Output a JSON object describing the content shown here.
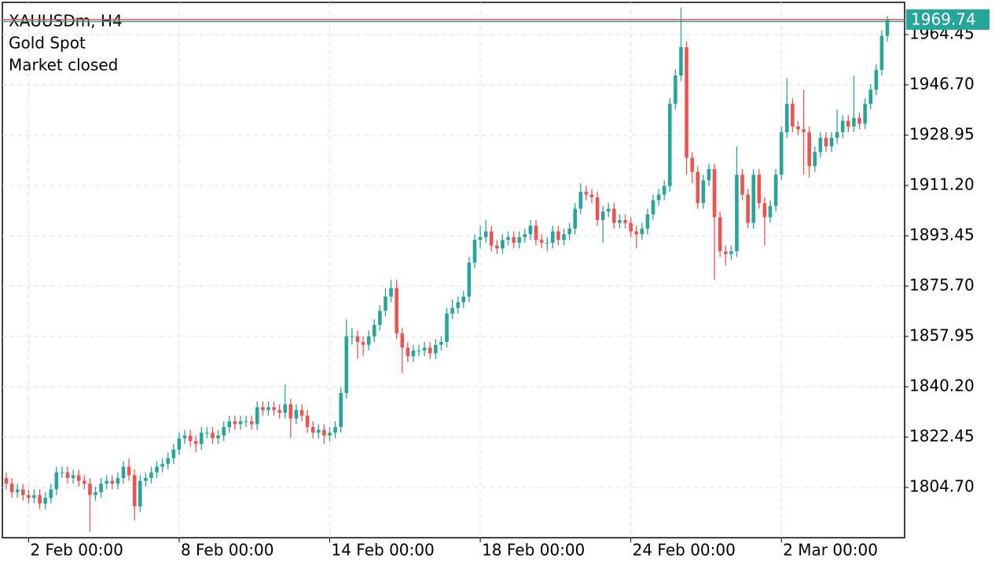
{
  "chart_data": {
    "type": "candlestick",
    "title": "XAUUSDm, H4",
    "subtitle": "Gold Spot",
    "annotation": "Market closed",
    "up_color": "#26a69a",
    "down_color": "#ef5350",
    "grid": true,
    "last_price": 1969.74,
    "ylim": [
      1786.95,
      1975.8
    ],
    "yticks": [
      {
        "value": 1804.7,
        "label": "1804.70"
      },
      {
        "value": 1822.45,
        "label": "1822.45"
      },
      {
        "value": 1840.2,
        "label": "1840.20"
      },
      {
        "value": 1857.95,
        "label": "1857.95"
      },
      {
        "value": 1875.7,
        "label": "1875.70"
      },
      {
        "value": 1893.45,
        "label": "1893.45"
      },
      {
        "value": 1911.2,
        "label": "1911.20"
      },
      {
        "value": 1928.95,
        "label": "1928.95"
      },
      {
        "value": 1946.7,
        "label": "1946.70"
      },
      {
        "value": 1964.45,
        "label": "1964.45"
      }
    ],
    "categories": [
      null,
      null,
      null,
      null,
      "2 Feb 00:00",
      null,
      null,
      null,
      null,
      null,
      null,
      null,
      null,
      null,
      null,
      null,
      null,
      null,
      null,
      null,
      null,
      null,
      null,
      null,
      null,
      null,
      null,
      null,
      null,
      null,
      null,
      "8 Feb 00:00",
      null,
      null,
      null,
      null,
      null,
      null,
      null,
      null,
      null,
      null,
      null,
      null,
      null,
      null,
      null,
      null,
      null,
      null,
      null,
      null,
      null,
      null,
      null,
      null,
      null,
      null,
      "14 Feb 00:00",
      null,
      null,
      null,
      null,
      null,
      null,
      null,
      null,
      null,
      null,
      null,
      null,
      null,
      null,
      null,
      null,
      null,
      null,
      null,
      null,
      null,
      null,
      null,
      null,
      null,
      null,
      "18 Feb 00:00",
      null,
      null,
      null,
      null,
      null,
      null,
      null,
      null,
      null,
      null,
      null,
      null,
      null,
      null,
      null,
      null,
      null,
      null,
      null,
      null,
      null,
      null,
      null,
      null,
      null,
      null,
      "24 Feb 00:00",
      null,
      null,
      null,
      null,
      null,
      null,
      null,
      null,
      null,
      null,
      null,
      null,
      null,
      null,
      null,
      null,
      null,
      null,
      null,
      null,
      null,
      null,
      null,
      null,
      null,
      null,
      "2 Mar 00:00",
      null,
      null,
      null,
      null,
      null,
      null,
      null,
      null,
      null,
      null,
      null,
      null,
      null,
      null,
      null,
      null,
      null,
      null,
      null
    ],
    "open": [
      1808,
      1806,
      1803,
      1804,
      1802,
      1801,
      1802,
      1799,
      1801,
      1804,
      1810,
      1810,
      1808,
      1809,
      1807,
      1806,
      1802,
      1803,
      1806,
      1807,
      1806,
      1808,
      1812,
      1809,
      1798,
      1807,
      1808,
      1810,
      1812,
      1813,
      1815,
      1818,
      1822,
      1823,
      1821,
      1820,
      1824,
      1824,
      1822,
      1823,
      1826,
      1828,
      1827,
      1828,
      1828,
      1827,
      1833,
      1832,
      1833,
      1832,
      1831,
      1834,
      1829,
      1832,
      1830,
      1826,
      1824,
      1825,
      1823,
      1824,
      1826,
      1838,
      1858,
      1858,
      1856,
      1855,
      1858,
      1862,
      1867,
      1872,
      1875,
      1859,
      1854,
      1851,
      1853,
      1853,
      1854,
      1852,
      1855,
      1856,
      1866,
      1868,
      1870,
      1872,
      1884,
      1892,
      1893,
      1895,
      1890,
      1889,
      1892,
      1893,
      1891,
      1893,
      1894,
      1897,
      1892,
      1891,
      1891,
      1895,
      1892,
      1894,
      1896,
      1903,
      1909,
      1908,
      1907,
      1899,
      1902,
      1903,
      1898,
      1899,
      1898,
      1895,
      1894,
      1896,
      1901,
      1906,
      1908,
      1911,
      1940,
      1950,
      1960,
      1921,
      1916,
      1905,
      1913,
      1917,
      1900,
      1888,
      1887,
      1888,
      1915,
      1908,
      1898,
      1915,
      1905,
      1900,
      1904,
      1915,
      1930,
      1940,
      1932,
      1931,
      1930,
      1918,
      1923,
      1928,
      1925,
      1928,
      1930,
      1934,
      1932,
      1935,
      1933,
      1940,
      1945,
      1952,
      1964
    ],
    "high": [
      1810,
      1808,
      1806,
      1806,
      1804,
      1804,
      1804,
      1803,
      1806,
      1812,
      1812,
      1812,
      1811,
      1811,
      1809,
      1808,
      1805,
      1808,
      1809,
      1809,
      1810,
      1814,
      1815,
      1811,
      1809,
      1810,
      1812,
      1814,
      1815,
      1817,
      1820,
      1824,
      1825,
      1825,
      1823,
      1826,
      1826,
      1826,
      1825,
      1828,
      1830,
      1830,
      1830,
      1830,
      1830,
      1835,
      1835,
      1835,
      1835,
      1834,
      1841,
      1836,
      1834,
      1834,
      1832,
      1828,
      1827,
      1827,
      1826,
      1828,
      1840,
      1864,
      1861,
      1860,
      1858,
      1860,
      1864,
      1869,
      1875,
      1878,
      1878,
      1861,
      1856,
      1855,
      1855,
      1856,
      1856,
      1857,
      1858,
      1868,
      1871,
      1872,
      1874,
      1886,
      1894,
      1897,
      1899,
      1897,
      1892,
      1894,
      1895,
      1895,
      1895,
      1896,
      1899,
      1899,
      1894,
      1893,
      1897,
      1897,
      1896,
      1898,
      1905,
      1912,
      1911,
      1910,
      1909,
      1904,
      1905,
      1905,
      1901,
      1901,
      1900,
      1897,
      1898,
      1903,
      1908,
      1910,
      1913,
      1942,
      1952,
      1974,
      1962,
      1923,
      1918,
      1915,
      1919,
      1919,
      1902,
      1890,
      1890,
      1925,
      1917,
      1910,
      1917,
      1917,
      1907,
      1906,
      1917,
      1932,
      1949,
      1942,
      1934,
      1945,
      1932,
      1925,
      1930,
      1930,
      1930,
      1938,
      1936,
      1936,
      1950,
      1937,
      1942,
      1947,
      1954,
      1966,
      1971
    ],
    "low": [
      1804,
      1801,
      1801,
      1800,
      1799,
      1799,
      1797,
      1797,
      1799,
      1802,
      1808,
      1806,
      1806,
      1805,
      1804,
      1789,
      1800,
      1801,
      1804,
      1804,
      1804,
      1806,
      1807,
      1793,
      1796,
      1805,
      1806,
      1808,
      1810,
      1811,
      1813,
      1816,
      1820,
      1819,
      1817,
      1818,
      1822,
      1820,
      1820,
      1821,
      1824,
      1825,
      1825,
      1826,
      1825,
      1825,
      1830,
      1830,
      1830,
      1829,
      1829,
      1822,
      1827,
      1828,
      1824,
      1822,
      1822,
      1820,
      1821,
      1822,
      1824,
      1836,
      1855,
      1850,
      1851,
      1853,
      1856,
      1860,
      1865,
      1870,
      1857,
      1845,
      1849,
      1849,
      1851,
      1851,
      1850,
      1850,
      1853,
      1854,
      1864,
      1866,
      1868,
      1870,
      1882,
      1889,
      1891,
      1888,
      1887,
      1887,
      1890,
      1889,
      1889,
      1891,
      1892,
      1890,
      1889,
      1888,
      1889,
      1890,
      1890,
      1892,
      1894,
      1901,
      1906,
      1905,
      1897,
      1891,
      1900,
      1896,
      1896,
      1896,
      1893,
      1889,
      1892,
      1894,
      1899,
      1904,
      1906,
      1909,
      1938,
      1948,
      1915,
      1912,
      1903,
      1903,
      1911,
      1878,
      1886,
      1883,
      1885,
      1886,
      1906,
      1896,
      1896,
      1903,
      1890,
      1898,
      1902,
      1913,
      1928,
      1930,
      1929,
      1915,
      1914,
      1916,
      1921,
      1923,
      1923,
      1926,
      1928,
      1930,
      1930,
      1931,
      1931,
      1938,
      1943,
      1950,
      1962
    ],
    "close": [
      1806,
      1803,
      1804,
      1802,
      1801,
      1802,
      1799,
      1801,
      1804,
      1810,
      1810,
      1808,
      1809,
      1807,
      1806,
      1802,
      1803,
      1806,
      1807,
      1806,
      1808,
      1812,
      1809,
      1798,
      1807,
      1808,
      1810,
      1812,
      1813,
      1815,
      1818,
      1822,
      1823,
      1821,
      1820,
      1824,
      1824,
      1822,
      1823,
      1826,
      1828,
      1827,
      1828,
      1828,
      1827,
      1833,
      1832,
      1833,
      1832,
      1831,
      1834,
      1829,
      1832,
      1830,
      1826,
      1824,
      1825,
      1823,
      1824,
      1826,
      1838,
      1858,
      1858,
      1856,
      1855,
      1858,
      1862,
      1867,
      1872,
      1875,
      1859,
      1854,
      1851,
      1853,
      1853,
      1854,
      1852,
      1855,
      1856,
      1866,
      1868,
      1870,
      1872,
      1884,
      1892,
      1893,
      1895,
      1890,
      1889,
      1892,
      1893,
      1891,
      1893,
      1894,
      1897,
      1892,
      1891,
      1891,
      1895,
      1892,
      1894,
      1896,
      1903,
      1909,
      1908,
      1907,
      1899,
      1902,
      1903,
      1898,
      1899,
      1898,
      1895,
      1894,
      1896,
      1901,
      1906,
      1908,
      1911,
      1940,
      1950,
      1960,
      1921,
      1916,
      1905,
      1913,
      1917,
      1900,
      1888,
      1887,
      1888,
      1915,
      1908,
      1898,
      1915,
      1905,
      1900,
      1904,
      1915,
      1930,
      1940,
      1932,
      1931,
      1930,
      1918,
      1923,
      1928,
      1925,
      1928,
      1930,
      1934,
      1932,
      1935,
      1933,
      1940,
      1945,
      1952,
      1964,
      1969.74
    ]
  }
}
